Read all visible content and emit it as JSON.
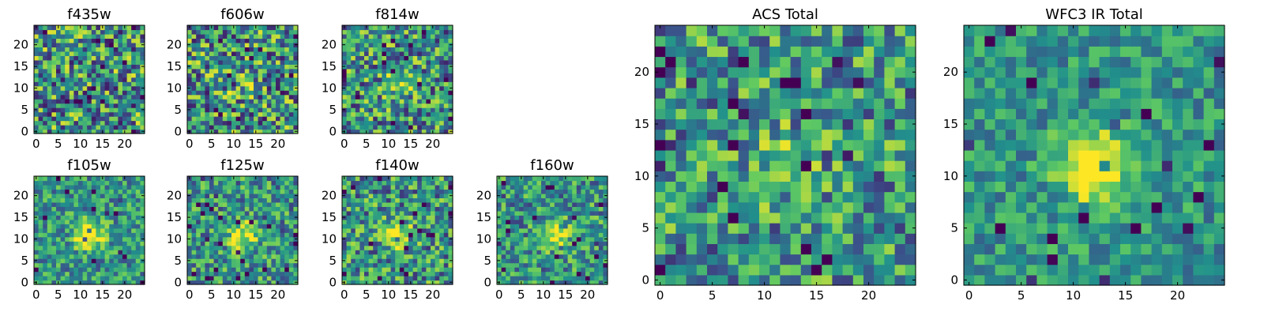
{
  "chart_data": [
    {
      "type": "heatmap",
      "title": "f435w",
      "grid_size": 25,
      "xlim": [
        -0.5,
        24.5
      ],
      "ylim": [
        -0.5,
        24.5
      ],
      "xticks": [
        0,
        5,
        10,
        15,
        20
      ],
      "yticks": [
        0,
        5,
        10,
        15,
        20
      ],
      "colormap": "viridis",
      "source_peak": 0.0,
      "peak_center": [
        12,
        11
      ],
      "noise_level": 0.55,
      "seed": 11
    },
    {
      "type": "heatmap",
      "title": "f606w",
      "grid_size": 25,
      "xlim": [
        -0.5,
        24.5
      ],
      "ylim": [
        -0.5,
        24.5
      ],
      "xticks": [
        0,
        5,
        10,
        15,
        20
      ],
      "yticks": [
        0,
        5,
        10,
        15,
        20
      ],
      "colormap": "viridis",
      "source_peak": 0.15,
      "peak_center": [
        12,
        11
      ],
      "noise_level": 0.55,
      "seed": 23
    },
    {
      "type": "heatmap",
      "title": "f814w",
      "grid_size": 25,
      "xlim": [
        -0.5,
        24.5
      ],
      "ylim": [
        -0.5,
        24.5
      ],
      "xticks": [
        0,
        5,
        10,
        15,
        20
      ],
      "yticks": [
        0,
        5,
        10,
        15,
        20
      ],
      "colormap": "viridis",
      "source_peak": 0.3,
      "peak_center": [
        13,
        11
      ],
      "noise_level": 0.5,
      "seed": 37
    },
    {
      "type": "heatmap",
      "title": "f105w",
      "grid_size": 25,
      "xlim": [
        -0.5,
        24.5
      ],
      "ylim": [
        -0.5,
        24.5
      ],
      "xticks": [
        0,
        5,
        10,
        15,
        20
      ],
      "yticks": [
        0,
        5,
        10,
        15,
        20
      ],
      "colormap": "viridis",
      "source_peak": 0.6,
      "peak_center": [
        12,
        11
      ],
      "noise_level": 0.35,
      "seed": 41
    },
    {
      "type": "heatmap",
      "title": "f125w",
      "grid_size": 25,
      "xlim": [
        -0.5,
        24.5
      ],
      "ylim": [
        -0.5,
        24.5
      ],
      "xticks": [
        0,
        5,
        10,
        15,
        20
      ],
      "yticks": [
        0,
        5,
        10,
        15,
        20
      ],
      "colormap": "viridis",
      "source_peak": 0.5,
      "peak_center": [
        12,
        11
      ],
      "noise_level": 0.4,
      "seed": 53
    },
    {
      "type": "heatmap",
      "title": "f140w",
      "grid_size": 25,
      "xlim": [
        -0.5,
        24.5
      ],
      "ylim": [
        -0.5,
        24.5
      ],
      "xticks": [
        0,
        5,
        10,
        15,
        20
      ],
      "yticks": [
        0,
        5,
        10,
        15,
        20
      ],
      "colormap": "viridis",
      "source_peak": 0.5,
      "peak_center": [
        12,
        11
      ],
      "noise_level": 0.45,
      "seed": 67
    },
    {
      "type": "heatmap",
      "title": "f160w",
      "grid_size": 25,
      "xlim": [
        -0.5,
        24.5
      ],
      "ylim": [
        -0.5,
        24.5
      ],
      "xticks": [
        0,
        5,
        10,
        15,
        20
      ],
      "yticks": [
        0,
        5,
        10,
        15,
        20
      ],
      "colormap": "viridis",
      "source_peak": 0.55,
      "peak_center": [
        12,
        11
      ],
      "noise_level": 0.4,
      "seed": 71
    },
    {
      "type": "heatmap",
      "title": "ACS Total",
      "grid_size": 25,
      "xlim": [
        -0.5,
        24.5
      ],
      "ylim": [
        -0.5,
        24.5
      ],
      "xticks": [
        0,
        5,
        10,
        15,
        20
      ],
      "yticks": [
        0,
        5,
        10,
        15,
        20
      ],
      "colormap": "viridis",
      "source_peak": 0.25,
      "peak_center": [
        12,
        11
      ],
      "noise_level": 0.45,
      "seed": 83
    },
    {
      "type": "heatmap",
      "title": "WFC3 IR Total",
      "grid_size": 25,
      "xlim": [
        -0.5,
        24.5
      ],
      "ylim": [
        -0.5,
        24.5
      ],
      "xticks": [
        0,
        5,
        10,
        15,
        20
      ],
      "yticks": [
        0,
        5,
        10,
        15,
        20
      ],
      "colormap": "viridis",
      "source_peak": 0.75,
      "peak_center": [
        12,
        11
      ],
      "noise_level": 0.28,
      "seed": 97
    }
  ],
  "colors": {
    "viridis": [
      "#440154",
      "#3b528b",
      "#21918c",
      "#5ec962",
      "#fde725"
    ]
  }
}
